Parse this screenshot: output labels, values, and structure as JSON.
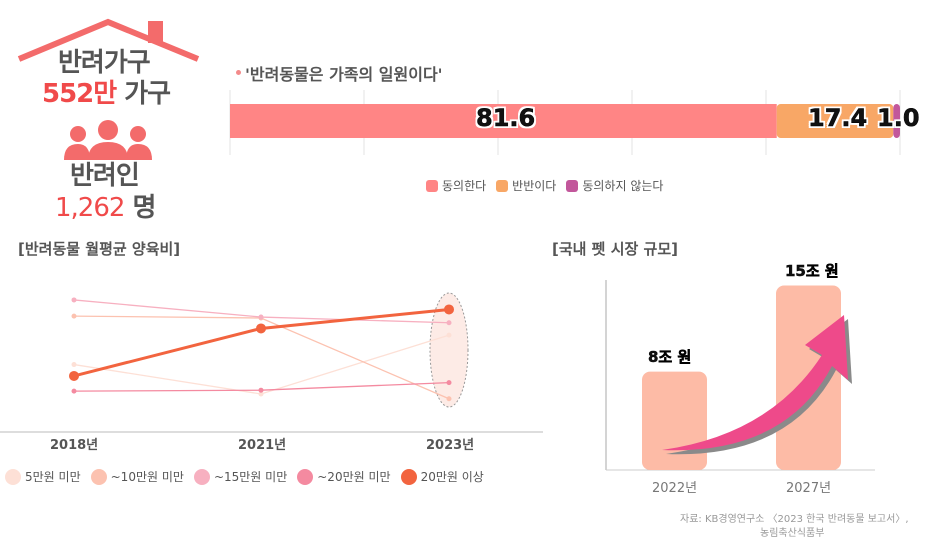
{
  "summary": {
    "household_label": "반려가구",
    "household_value": "552만",
    "household_unit": "가구",
    "people_label": "반려인",
    "people_value": "1,262",
    "people_unit": "명"
  },
  "colors": {
    "accent": "#f04a4a",
    "house": "#f36b6b"
  },
  "source": {
    "line1": "자료: KB경영연구소 〈2023 한국 반려동물 보고서〉,",
    "line2": "농림축산식품부"
  },
  "chart_data": [
    {
      "type": "bar",
      "orientation": "horizontal-stacked",
      "title": "'반려동물은 가족의 일원이다'",
      "xlim": [
        0,
        100
      ],
      "grid": true,
      "legend_position": "bottom",
      "series": [
        {
          "name": "동의한다",
          "value": 81.6,
          "label": "81.6",
          "color": "#ff8585"
        },
        {
          "name": "반반이다",
          "value": 17.4,
          "label": "17.4",
          "color": "#f8a766"
        },
        {
          "name": "동의하지 않는다",
          "value": 1.0,
          "label": "1.0",
          "color": "#c2579b"
        }
      ]
    },
    {
      "type": "line",
      "title": "[반려동물 월평균 양육비]",
      "categories": [
        "2018년",
        "2021년",
        "2023년"
      ],
      "legend_position": "bottom",
      "highlight": "2023년",
      "series": [
        {
          "name": "5만원 미만",
          "color": "#fde0d6",
          "values": [
            71,
            40,
            102
          ]
        },
        {
          "name": "~10만원 미만",
          "color": "#fcc2b0",
          "values": [
            122,
            120,
            35
          ]
        },
        {
          "name": "~15만원 미만",
          "color": "#f7b0c0",
          "values": [
            139,
            121,
            115
          ]
        },
        {
          "name": "~20만원 미만",
          "color": "#f48aa0",
          "values": [
            43,
            44,
            52
          ]
        },
        {
          "name": "20만원 이상",
          "color": "#f2643f",
          "values": [
            59,
            109,
            129
          ]
        }
      ]
    },
    {
      "type": "bar",
      "title": "[국내 펫 시장 규모]",
      "categories": [
        "2022년",
        "2027년"
      ],
      "values": [
        8,
        15
      ],
      "labels": [
        "8조 원",
        "15조 원"
      ],
      "color": "#fdbba6",
      "arrow_color": "#ee4a8a"
    }
  ]
}
